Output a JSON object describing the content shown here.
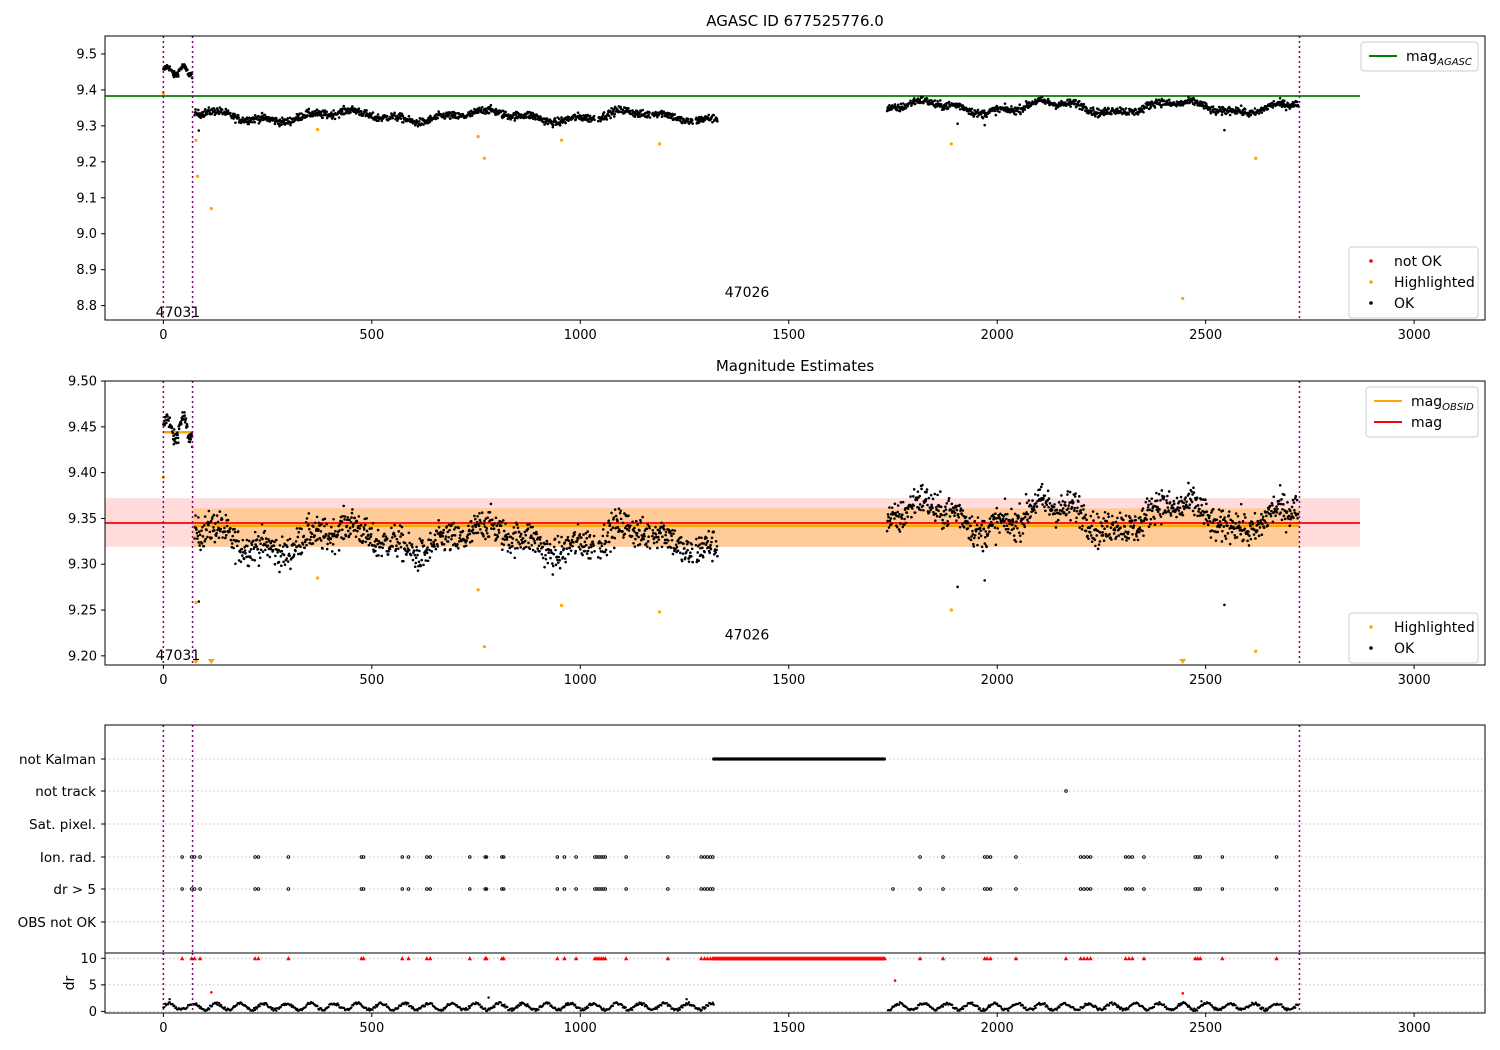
{
  "chart_data": [
    {
      "type": "scatter",
      "title": "AGASC ID 677525776.0",
      "xlim": [
        -140,
        3170
      ],
      "ylim": [
        8.76,
        9.55
      ],
      "xticks": [
        0,
        500,
        1000,
        1500,
        2000,
        2500,
        3000
      ],
      "yticks": [
        8.8,
        8.9,
        9.0,
        9.1,
        9.2,
        9.3,
        9.4,
        9.5
      ],
      "grid": false,
      "obsid_boundaries": [
        0,
        70,
        2725
      ],
      "obsid_labels": [
        {
          "text": "47031",
          "x": 35,
          "y": 8.78
        },
        {
          "text": "47026",
          "x": 1400,
          "y": 8.835
        }
      ],
      "lines": [
        {
          "name": "mag_AGASC",
          "label_main": "mag",
          "label_sub": "AGASC",
          "color": "#008000",
          "y": 9.383,
          "x": [
            -140,
            2870
          ]
        }
      ],
      "series": [
        {
          "name": "OK",
          "color": "#000000",
          "mean_segments": [
            [
              0,
              9.47,
              9.45
            ],
            [
              75,
              9.31,
              9.33
            ],
            [
              500,
              9.33,
              9.33
            ],
            [
              1330,
              9.33,
              9.33
            ]
          ]
        },
        {
          "name": "Highlighted",
          "color": "#ffa500",
          "points": [
            [
              0,
              9.39
            ],
            [
              78,
              9.26
            ],
            [
              82,
              9.16
            ],
            [
              115,
              9.07
            ],
            [
              370,
              9.29
            ],
            [
              755,
              9.27
            ],
            [
              770,
              9.21
            ],
            [
              955,
              9.26
            ],
            [
              1190,
              9.25
            ],
            [
              1890,
              9.25
            ],
            [
              2445,
              8.82
            ],
            [
              2620,
              9.21
            ]
          ]
        },
        {
          "name": "not OK",
          "color": "#ff0000",
          "points": []
        }
      ],
      "legend": [
        {
          "position": "top-right",
          "entries": [
            "mag_AGASC"
          ]
        },
        {
          "position": "bottom-right",
          "entries": [
            "not OK",
            "Highlighted",
            "OK"
          ]
        }
      ]
    },
    {
      "type": "scatter",
      "title": "Magnitude Estimates",
      "xlim": [
        -140,
        3170
      ],
      "ylim": [
        9.19,
        9.5
      ],
      "xticks": [
        0,
        500,
        1000,
        1500,
        2000,
        2500,
        3000
      ],
      "yticks": [
        9.2,
        9.25,
        9.3,
        9.35,
        9.4,
        9.45,
        9.5
      ],
      "grid": false,
      "obsid_boundaries": [
        0,
        70,
        2725
      ],
      "obsid_labels": [
        {
          "text": "47031",
          "x": 35,
          "y": 9.2
        },
        {
          "text": "47026",
          "x": 1400,
          "y": 9.222
        }
      ],
      "lines": [
        {
          "name": "mag_OBSID",
          "label_main": "mag",
          "label_sub": "OBSID",
          "color": "#ffa500",
          "segments": [
            {
              "x": [
                0,
                70
              ],
              "y": 9.444
            },
            {
              "x": [
                70,
                2725
              ],
              "y": 9.342
            }
          ]
        },
        {
          "name": "mag",
          "color": "#ff0000",
          "y": 9.345,
          "x": [
            -140,
            2870
          ]
        }
      ],
      "bands": [
        {
          "name": "mag range",
          "color": "#ff9999",
          "opacity": 0.35,
          "y": [
            9.319,
            9.372
          ],
          "x": [
            -140,
            2870
          ]
        },
        {
          "name": "mag_OBSID range",
          "color": "#ffa500",
          "opacity": 0.3,
          "y": [
            9.319,
            9.361
          ],
          "x": [
            70,
            2725
          ]
        }
      ],
      "series": [
        {
          "name": "OK",
          "color": "#000000"
        },
        {
          "name": "Highlighted",
          "color": "#ffa500",
          "points": [
            [
              0,
              9.395
            ],
            [
              78,
              9.258
            ],
            [
              370,
              9.285
            ],
            [
              755,
              9.272
            ],
            [
              770,
              9.21
            ],
            [
              955,
              9.255
            ],
            [
              1190,
              9.248
            ],
            [
              1890,
              9.25
            ],
            [
              2620,
              9.205
            ]
          ],
          "clipped_low": [
            78,
            115,
            2445
          ]
        }
      ],
      "legend": [
        {
          "position": "top-right",
          "entries": [
            "mag_OBSID",
            "mag"
          ]
        },
        {
          "position": "bottom-right",
          "entries": [
            "Highlighted",
            "OK"
          ]
        }
      ]
    },
    {
      "type": "scatter",
      "title": "",
      "xlim": [
        -140,
        3170
      ],
      "xticks": [
        0,
        500,
        1000,
        1500,
        2000,
        2500,
        3000
      ],
      "categories": [
        "not Kalman",
        "not track",
        "Sat. pixel.",
        "Ion. rad.",
        "dr > 5",
        "OBS not OK"
      ],
      "grid": true,
      "obsid_boundaries": [
        0,
        70,
        2725
      ],
      "flag_points": {
        "not Kalman": {
          "range": [
            1320,
            1730
          ]
        },
        "not track": [
          2165
        ],
        "Sat. pixel.": [],
        "Ion. rad.": [
          45,
          68,
          75,
          88,
          220,
          228,
          300,
          475,
          480,
          573,
          588,
          632,
          640,
          735,
          772,
          775,
          812,
          816,
          945,
          962,
          990,
          1035,
          1040,
          1045,
          1050,
          1055,
          1060,
          1110,
          1210,
          1290,
          1298,
          1305,
          1312,
          1318,
          1815,
          1870,
          1970,
          1976,
          1984,
          2045,
          2200,
          2208,
          2216,
          2224,
          2308,
          2316,
          2324,
          2352,
          2475,
          2481,
          2487,
          2540,
          2670
        ],
        "dr > 5": [
          45,
          68,
          75,
          88,
          220,
          228,
          300,
          475,
          480,
          573,
          588,
          632,
          640,
          735,
          772,
          775,
          812,
          816,
          945,
          962,
          990,
          1035,
          1040,
          1045,
          1050,
          1055,
          1060,
          1110,
          1210,
          1290,
          1298,
          1305,
          1312,
          1318,
          1750,
          1815,
          1870,
          1970,
          1976,
          1984,
          2045,
          2200,
          2208,
          2216,
          2224,
          2308,
          2316,
          2324,
          2352,
          2475,
          2481,
          2487,
          2540,
          2670
        ],
        "OBS not OK": []
      },
      "legend": []
    },
    {
      "type": "scatter",
      "title": "",
      "xlim": [
        -140,
        3170
      ],
      "ylim": [
        -0.3,
        11
      ],
      "xticks": [
        0,
        500,
        1000,
        1500,
        2000,
        2500,
        3000
      ],
      "yticks": [
        0,
        5,
        10
      ],
      "ylabel": "dr",
      "grid": true,
      "obsid_boundaries": [
        0,
        70,
        2725
      ],
      "dr_threshold": 10,
      "red_capped": [
        45,
        68,
        75,
        88,
        220,
        228,
        300,
        475,
        480,
        573,
        588,
        632,
        640,
        735,
        772,
        775,
        812,
        816,
        945,
        962,
        990,
        1035,
        1040,
        1045,
        1050,
        1055,
        1060,
        1110,
        1210,
        1290,
        1298,
        1305,
        1312,
        1318,
        1815,
        1870,
        1970,
        1976,
        1984,
        2045,
        2165,
        2200,
        2208,
        2216,
        2224,
        2308,
        2316,
        2324,
        2352,
        2475,
        2481,
        2487,
        2540,
        2670
      ],
      "red_points": [
        [
          115,
          3.6
        ],
        [
          1755,
          5.8
        ],
        [
          2445,
          3.4
        ]
      ],
      "black_gaps": [
        [
          1322,
          1738
        ]
      ],
      "legend": []
    }
  ],
  "colors": {
    "boundary": "#800080",
    "ok": "#000000",
    "highlighted": "#ffa500",
    "not_ok": "#ff0000",
    "agasc_line": "#008000"
  }
}
